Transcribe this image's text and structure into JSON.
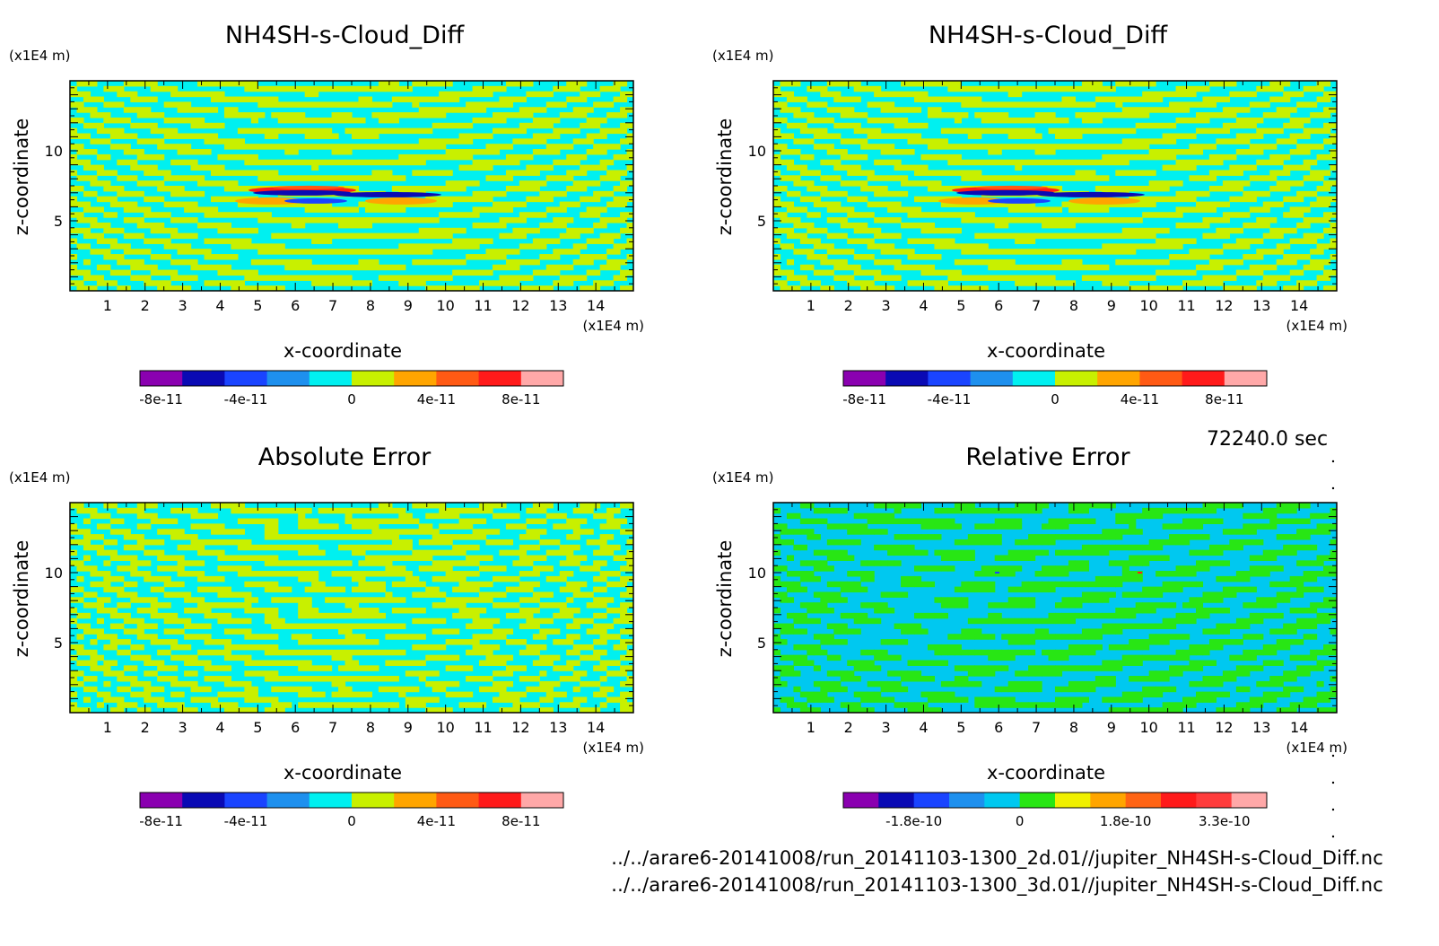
{
  "time_label": "72240.0 sec",
  "files": [
    "../../arare6-20141008/run_20141103-1300_2d.01//jupiter_NH4SH-s-Cloud_Diff.nc",
    "../../arare6-20141008/run_20141103-1300_3d.01//jupiter_NH4SH-s-Cloud_Diff.nc"
  ],
  "chart_data": [
    {
      "type": "heatmap",
      "title": "NH4SH-s-Cloud_Diff",
      "xlabel": "x-coordinate",
      "ylabel": "z-coordinate",
      "x_unit": "(x1E4 m)",
      "y_unit": "(x1E4 m)",
      "xlim": [
        0,
        15
      ],
      "ylim": [
        0,
        15
      ],
      "xticks": [
        1,
        2,
        3,
        4,
        5,
        6,
        7,
        8,
        9,
        10,
        11,
        12,
        13,
        14
      ],
      "yticks": [
        5,
        10
      ],
      "colorbar": {
        "colors": [
          "#8a00b0",
          "#0a0ab4",
          "#1a44ff",
          "#1e90ee",
          "#00f0f0",
          "#c8f000",
          "#ffa500",
          "#ff5a14",
          "#ff1a1a",
          "#ffa8a8"
        ],
        "ticks": [
          {
            "label": "-8e-11",
            "pos": 0.5
          },
          {
            "label": "-4e-11",
            "pos": 2.5
          },
          {
            "label": "0",
            "pos": 5.0
          },
          {
            "label": "4e-11",
            "pos": 7.0
          },
          {
            "label": "8e-11",
            "pos": 9.0
          }
        ]
      },
      "field": "model"
    },
    {
      "type": "heatmap",
      "title": "NH4SH-s-Cloud_Diff",
      "xlabel": "x-coordinate",
      "ylabel": "z-coordinate",
      "x_unit": "(x1E4 m)",
      "y_unit": "(x1E4 m)",
      "xlim": [
        0,
        15
      ],
      "ylim": [
        0,
        15
      ],
      "xticks": [
        1,
        2,
        3,
        4,
        5,
        6,
        7,
        8,
        9,
        10,
        11,
        12,
        13,
        14
      ],
      "yticks": [
        5,
        10
      ],
      "colorbar": {
        "colors": [
          "#8a00b0",
          "#0a0ab4",
          "#1a44ff",
          "#1e90ee",
          "#00f0f0",
          "#c8f000",
          "#ffa500",
          "#ff5a14",
          "#ff1a1a",
          "#ffa8a8"
        ],
        "ticks": [
          {
            "label": "-8e-11",
            "pos": 0.5
          },
          {
            "label": "-4e-11",
            "pos": 2.5
          },
          {
            "label": "0",
            "pos": 5.0
          },
          {
            "label": "4e-11",
            "pos": 7.0
          },
          {
            "label": "8e-11",
            "pos": 9.0
          }
        ]
      },
      "field": "model"
    },
    {
      "type": "heatmap",
      "title": "Absolute Error",
      "xlabel": "x-coordinate",
      "ylabel": "z-coordinate",
      "x_unit": "(x1E4 m)",
      "y_unit": "(x1E4 m)",
      "xlim": [
        0,
        15
      ],
      "ylim": [
        0,
        15
      ],
      "xticks": [
        1,
        2,
        3,
        4,
        5,
        6,
        7,
        8,
        9,
        10,
        11,
        12,
        13,
        14
      ],
      "yticks": [
        5,
        10
      ],
      "colorbar": {
        "colors": [
          "#8a00b0",
          "#0a0ab4",
          "#1a44ff",
          "#1e90ee",
          "#00f0f0",
          "#c8f000",
          "#ffa500",
          "#ff5a14",
          "#ff1a1a",
          "#ffa8a8"
        ],
        "ticks": [
          {
            "label": "-8e-11",
            "pos": 0.5
          },
          {
            "label": "-4e-11",
            "pos": 2.5
          },
          {
            "label": "0",
            "pos": 5.0
          },
          {
            "label": "4e-11",
            "pos": 7.0
          },
          {
            "label": "8e-11",
            "pos": 9.0
          }
        ]
      },
      "field": "abs"
    },
    {
      "type": "heatmap",
      "title": "Relative Error",
      "xlabel": "x-coordinate",
      "ylabel": "z-coordinate",
      "x_unit": "(x1E4 m)",
      "y_unit": "(x1E4 m)",
      "xlim": [
        0,
        15
      ],
      "ylim": [
        0,
        15
      ],
      "xticks": [
        1,
        2,
        3,
        4,
        5,
        6,
        7,
        8,
        9,
        10,
        11,
        12,
        13,
        14
      ],
      "yticks": [
        5,
        10
      ],
      "colorbar": {
        "colors": [
          "#8a00b0",
          "#0a0ab4",
          "#1a44ff",
          "#1e90ee",
          "#00c8f0",
          "#28e614",
          "#f0f000",
          "#ffa500",
          "#ff6414",
          "#ff1a1a",
          "#ff3c3c",
          "#ffa8a8"
        ],
        "ticks": [
          {
            "label": "-1.8e-10",
            "pos": 2.0
          },
          {
            "label": "0",
            "pos": 5.0
          },
          {
            "label": "1.8e-10",
            "pos": 8.0
          },
          {
            "label": "3.3e-10",
            "pos": 10.8
          }
        ]
      },
      "field": "rel"
    }
  ]
}
